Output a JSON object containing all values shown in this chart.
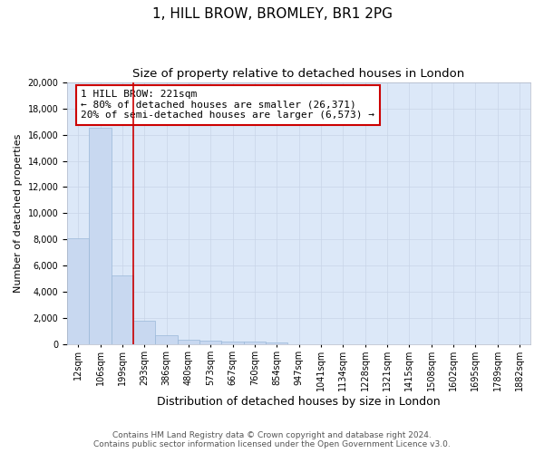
{
  "title": "1, HILL BROW, BROMLEY, BR1 2PG",
  "subtitle": "Size of property relative to detached houses in London",
  "xlabel": "Distribution of detached houses by size in London",
  "ylabel": "Number of detached properties",
  "categories": [
    "12sqm",
    "106sqm",
    "199sqm",
    "293sqm",
    "386sqm",
    "480sqm",
    "573sqm",
    "667sqm",
    "760sqm",
    "854sqm",
    "947sqm",
    "1041sqm",
    "1134sqm",
    "1228sqm",
    "1321sqm",
    "1415sqm",
    "1508sqm",
    "1602sqm",
    "1695sqm",
    "1789sqm",
    "1882sqm"
  ],
  "values": [
    8100,
    16500,
    5300,
    1850,
    750,
    370,
    280,
    220,
    200,
    170,
    0,
    0,
    0,
    0,
    0,
    0,
    0,
    0,
    0,
    0,
    0
  ],
  "bar_color": "#c8d8f0",
  "bar_edge_color": "#9ab8d8",
  "vline_color": "#cc0000",
  "vline_x": 2.5,
  "annotation_line1": "1 HILL BROW: 221sqm",
  "annotation_line2": "← 80% of detached houses are smaller (26,371)",
  "annotation_line3": "20% of semi-detached houses are larger (6,573) →",
  "annotation_edge_color": "#cc0000",
  "ylim_max": 20000,
  "yticks": [
    0,
    2000,
    4000,
    6000,
    8000,
    10000,
    12000,
    14000,
    16000,
    18000,
    20000
  ],
  "grid_color": "#c8d4e8",
  "bg_color": "#dce8f8",
  "footer_line1": "Contains HM Land Registry data © Crown copyright and database right 2024.",
  "footer_line2": "Contains public sector information licensed under the Open Government Licence v3.0.",
  "title_fontsize": 11,
  "subtitle_fontsize": 9.5,
  "xlabel_fontsize": 9,
  "ylabel_fontsize": 8,
  "tick_fontsize": 7,
  "annotation_fontsize": 8,
  "footer_fontsize": 6.5
}
